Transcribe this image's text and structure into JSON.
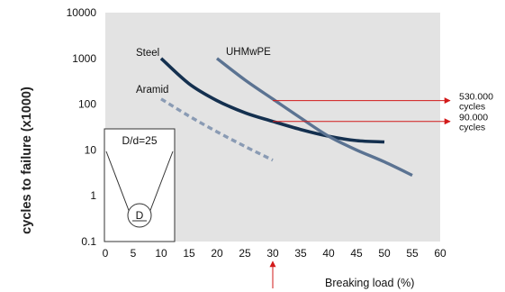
{
  "chart_data": {
    "type": "line",
    "ylabel": "cycles to failure (x1000)",
    "xlabel": "Breaking load (%)",
    "x_ticks": [
      "0",
      "5",
      "10",
      "15",
      "20",
      "25",
      "30",
      "35",
      "40",
      "45",
      "50",
      "55",
      "60"
    ],
    "y_ticks": [
      "0.1",
      "1",
      "10",
      "100",
      "1000",
      "10000"
    ],
    "xlim": [
      0,
      60
    ],
    "ylim": [
      0.1,
      10000
    ],
    "y_scale": "log",
    "grid": false,
    "colors": {
      "plot_background": "#e3e3e3",
      "steel": "#14304f",
      "uhmwpe": "#5b7392",
      "aramid": "#8a9bb4",
      "annotation": "#d21a1a"
    },
    "series": [
      {
        "name": "Steel",
        "style": "solid",
        "x": [
          10,
          15,
          20,
          25,
          30,
          35,
          40,
          45,
          50
        ],
        "y": [
          1000,
          280,
          120,
          65,
          42,
          28,
          20,
          16,
          15
        ]
      },
      {
        "name": "UHMwPE",
        "style": "solid",
        "x": [
          20,
          25,
          30,
          35,
          40,
          45,
          50,
          55
        ],
        "y": [
          1000,
          340,
          130,
          50,
          20,
          10,
          5.5,
          2.8
        ]
      },
      {
        "name": "Aramid",
        "style": "dashed",
        "x": [
          10,
          15,
          20,
          25,
          30
        ],
        "y": [
          130,
          55,
          25,
          12,
          6
        ]
      }
    ],
    "annotations": [
      {
        "line1": "530.000",
        "line2": "cycles",
        "y": 120
      },
      {
        "line1": "90.000",
        "line2": "cycles",
        "y": 42
      }
    ],
    "marker_x": 30,
    "inset": {
      "title": "D/d=25",
      "sheave_label": "D"
    }
  }
}
